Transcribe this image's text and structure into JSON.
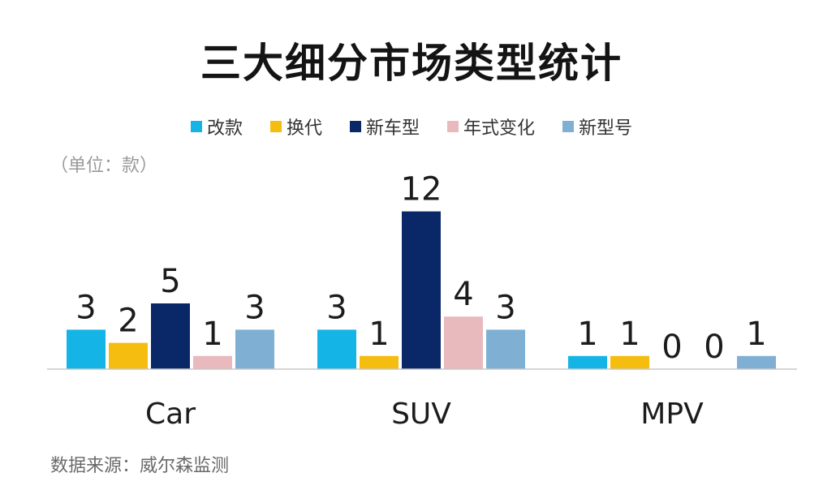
{
  "chart_data": {
    "type": "bar",
    "title": "三大细分市场类型统计",
    "unit_note": "（单位：款）",
    "source": "数据来源：威尔森监测",
    "categories": [
      "Car",
      "SUV",
      "MPV"
    ],
    "series": [
      {
        "name": "改款",
        "color": "#14b4e6",
        "values": [
          3,
          3,
          1
        ]
      },
      {
        "name": "换代",
        "color": "#f5bd0f",
        "values": [
          2,
          1,
          1
        ]
      },
      {
        "name": "新车型",
        "color": "#0a2868",
        "values": [
          5,
          12,
          0
        ]
      },
      {
        "name": "年式变化",
        "color": "#e8b9bd",
        "values": [
          1,
          4,
          0
        ]
      },
      {
        "name": "新型号",
        "color": "#7fb0d4",
        "values": [
          3,
          3,
          1
        ]
      }
    ],
    "ylim": [
      0,
      12
    ],
    "grid": false,
    "legend_position": "top",
    "data_labels": true
  }
}
